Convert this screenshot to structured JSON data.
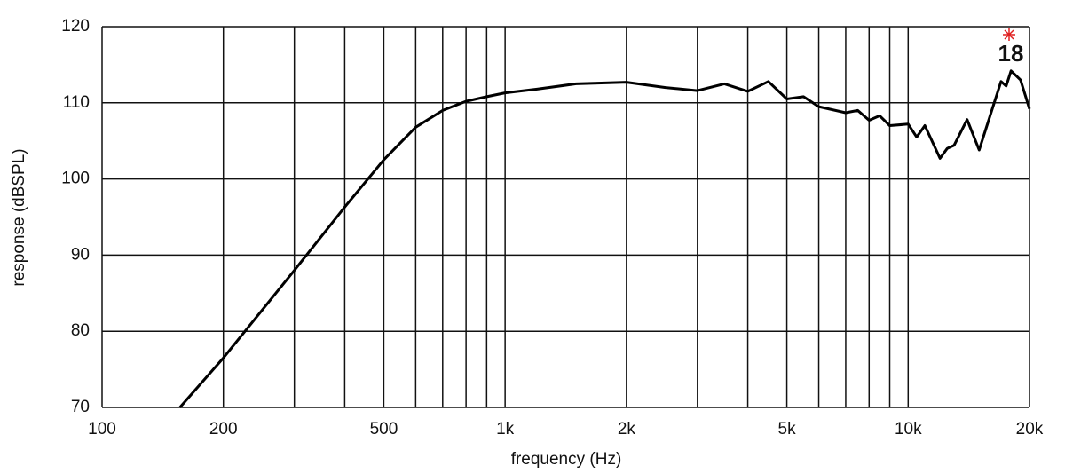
{
  "chart_data": {
    "type": "line",
    "x_label": "frequency (Hz)",
    "y_label": "response (dBSPL)",
    "logo": "18",
    "log_x": true,
    "grid": true,
    "xlim": [
      100,
      20000
    ],
    "ylim": [
      70,
      120
    ],
    "xticks": [
      100,
      200,
      500,
      {
        "value": 1000,
        "label": "1k"
      },
      {
        "value": 2000,
        "label": "2k"
      },
      {
        "value": 5000,
        "label": "5k"
      },
      {
        "value": 10000,
        "label": "10k"
      },
      {
        "value": 20000,
        "label": "20k"
      }
    ],
    "xminor": [
      300,
      400,
      600,
      700,
      800,
      900,
      3000,
      4000,
      6000,
      7000,
      8000,
      9000
    ],
    "yticks": [
      70,
      80,
      90,
      100,
      110,
      120
    ],
    "x": [
      156,
      200,
      300,
      400,
      500,
      600,
      700,
      800,
      900,
      1000,
      1200,
      1500,
      2000,
      2500,
      3000,
      3500,
      4000,
      4500,
      5000,
      5500,
      6000,
      7000,
      7500,
      8000,
      8500,
      9000,
      10000,
      10500,
      11000,
      12000,
      12500,
      13000,
      14000,
      15000,
      17000,
      17500,
      18000,
      19000,
      20000
    ],
    "series": [
      {
        "color": "#000000",
        "values": [
          70,
          76.5,
          88,
          96.3,
          102.5,
          106.8,
          109,
          110.2,
          110.8,
          111.3,
          111.8,
          112.5,
          112.7,
          112,
          111.6,
          112.5,
          111.5,
          112.8,
          110.5,
          110.8,
          109.5,
          108.7,
          109,
          107.7,
          108.3,
          107,
          107.2,
          105.5,
          107,
          102.7,
          104,
          104.4,
          107.8,
          103.8,
          112.8,
          112.2,
          114.2,
          113,
          109.2
        ]
      }
    ]
  }
}
